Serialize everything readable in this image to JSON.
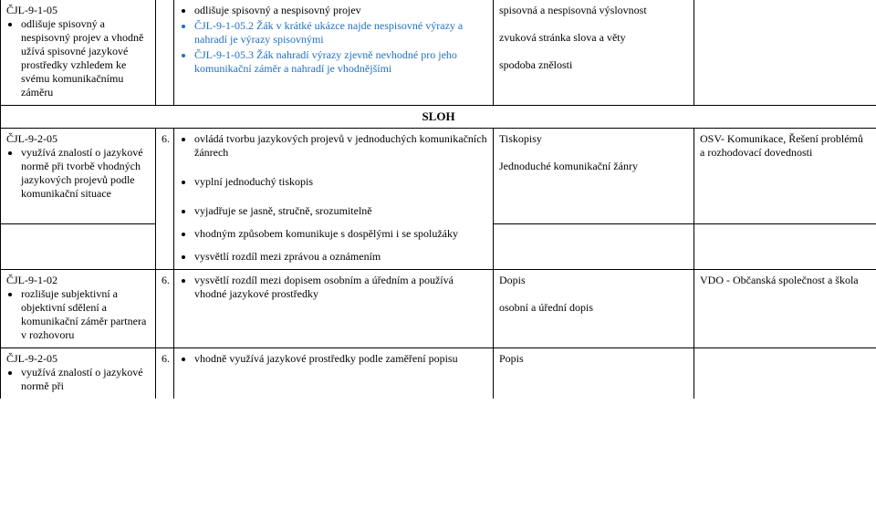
{
  "row1": {
    "c1_code": "ČJL-9-1-05",
    "c1_items": [
      "odlišuje spisovný a nespisovný projev a vhodně užívá spisovné jazykové prostředky vzhledem ke svému komunikačnímu záměru"
    ],
    "c3_items": [
      "odlišuje spisovný a nespisovný projev",
      "ČJL-9-1-05.2 Žák v krátké ukázce najde nespisovné výrazy a nahradí je výrazy spisovnými",
      "ČJL-9-1-05.3 Žák nahradí výrazy zjevně nevhodné pro jeho komunikační záměr a nahradí je vhodnějšími"
    ],
    "c4_lines": [
      "spisovná a nespisovná výslovnost",
      "zvuková stránka slova a věty",
      "spodoba znělosti"
    ]
  },
  "sloh": "SLOH",
  "row3": {
    "c1_code": "ČJL-9-2-05",
    "c1_items": [
      "využívá znalostí o jazykové normě při tvorbě vhodných jazykových projevů podle komunikační situace"
    ],
    "c2": "6.",
    "c3_items": [
      "ovládá tvorbu jazykových projevů v jednoduchých komunikačních žánrech",
      "vyplní jednoduchý tiskopis",
      "vyjadřuje se jasně, stručně, srozumitelně"
    ],
    "c4_lines": [
      "Tiskopisy",
      "Jednoduché komunikační žánry"
    ],
    "c5_lines": [
      "OSV-  Komunikace, Řešení problémů a rozhodovací dovednosti"
    ]
  },
  "row4": {
    "c3_items": [
      "vhodným způsobem komunikuje s dospělými i se spolužáky"
    ]
  },
  "row5": {
    "c3_items": [
      "vysvětlí rozdíl mezi zprávou a oznámením"
    ]
  },
  "row6": {
    "c1_code": "ČJL-9-1-02",
    "c1_items": [
      "rozlišuje subjektivní a objektivní sdělení a komunikační záměr partnera v rozhovoru"
    ],
    "c2": "6.",
    "c3_items": [
      "vysvětlí rozdíl mezi dopisem osobním a úředním a používá vhodné jazykové prostředky"
    ],
    "c4_lines": [
      "Dopis",
      "osobní a úřední dopis"
    ],
    "c5_lines": [
      "VDO - Občanská společnost a škola"
    ]
  },
  "row7": {
    "c1_code": "ČJL-9-2-05",
    "c1_items": [
      "využívá znalostí o jazykové normě při"
    ],
    "c2": "6.",
    "c3_items": [
      "vhodně využívá jazykové prostředky podle zaměření popisu"
    ],
    "c4_lines": [
      "Popis"
    ]
  }
}
